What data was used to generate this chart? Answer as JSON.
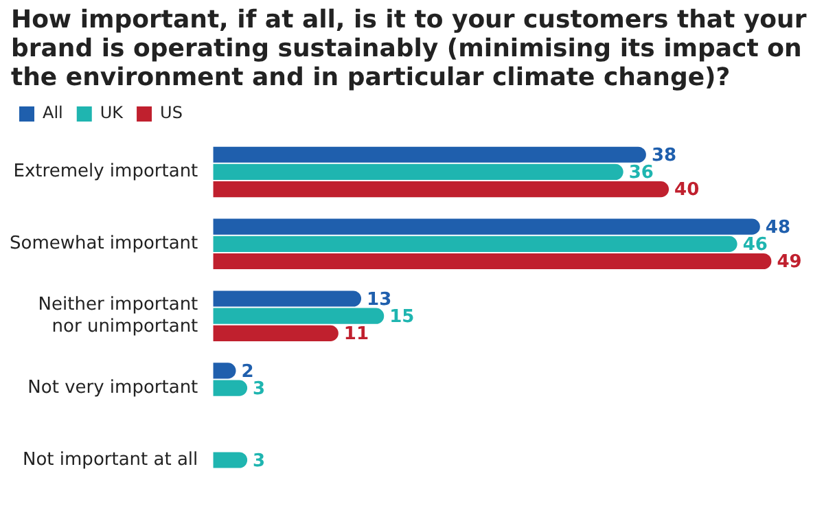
{
  "chart_data": {
    "type": "bar",
    "orientation": "horizontal",
    "title": "How important, if at all, is it to your customers that your brand is operating sustainably (minimising its impact on the environment and in particular climate change)?",
    "categories": [
      "Extremely important",
      "Somewhat important",
      "Neither important nor unimportant",
      "Not very important",
      "Not important at all"
    ],
    "series": [
      {
        "name": "All",
        "color": "#1f5fad",
        "values": [
          38,
          48,
          13,
          2,
          null
        ]
      },
      {
        "name": "UK",
        "color": "#1fb5b0",
        "values": [
          36,
          46,
          15,
          3,
          3
        ]
      },
      {
        "name": "US",
        "color": "#c0202e",
        "values": [
          40,
          49,
          11,
          null,
          null
        ]
      }
    ],
    "data_labels": true,
    "legend": "top left",
    "grid": false
  }
}
